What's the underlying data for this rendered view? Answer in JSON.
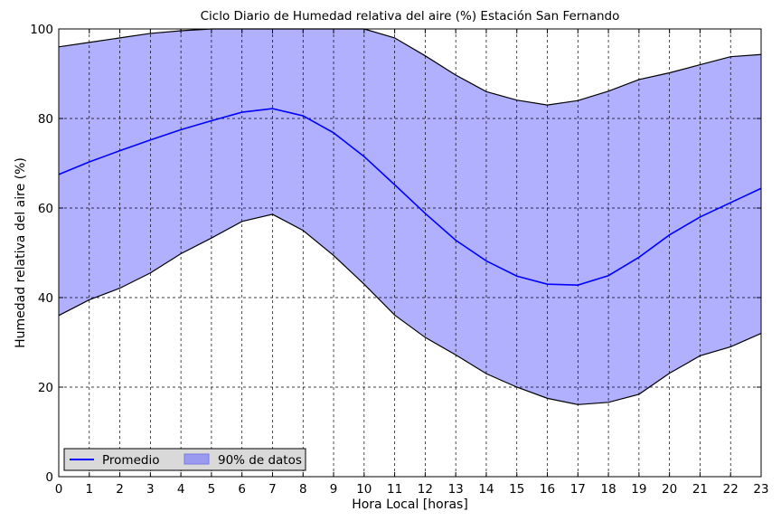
{
  "chart_data": {
    "type": "area",
    "title": "Ciclo Diario de Humedad relativa del aire (%) Estación San Fernando",
    "xlabel": "Hora Local [horas]",
    "ylabel": "Humedad relativa del aire (%)",
    "xlim": [
      0,
      23
    ],
    "ylim": [
      0,
      100
    ],
    "x_ticks": [
      "0",
      "1",
      "2",
      "3",
      "4",
      "5",
      "6",
      "7",
      "8",
      "9",
      "10",
      "11",
      "12",
      "13",
      "14",
      "15",
      "16",
      "17",
      "18",
      "19",
      "20",
      "21",
      "22",
      "23"
    ],
    "y_ticks": [
      "0",
      "20",
      "40",
      "60",
      "80",
      "100"
    ],
    "grid": true,
    "legend_position": "lower-left",
    "x": [
      0,
      1,
      2,
      3,
      4,
      5,
      6,
      7,
      8,
      9,
      10,
      11,
      12,
      13,
      14,
      15,
      16,
      17,
      18,
      19,
      20,
      21,
      22,
      23
    ],
    "series": [
      {
        "name": "Promedio",
        "kind": "line",
        "color": "#0000ff",
        "values": [
          67.5,
          70.3,
          72.8,
          75.2,
          77.5,
          79.5,
          81.4,
          82.2,
          80.6,
          76.8,
          71.5,
          65.2,
          58.8,
          52.8,
          48.2,
          44.8,
          43.0,
          42.8,
          44.9,
          49.0,
          54.0,
          58.0,
          61.2,
          64.4
        ]
      },
      {
        "name": "90% de datos",
        "kind": "band",
        "fill_color": "#b0b0ff",
        "upper": [
          96.0,
          97.0,
          98.0,
          99.0,
          99.6,
          100,
          100,
          100,
          100,
          100,
          100,
          98.0,
          94.0,
          89.7,
          86.0,
          84.1,
          83.0,
          84.0,
          86.1,
          88.7,
          90.2,
          92.0,
          93.8,
          94.3
        ],
        "lower": [
          36.0,
          39.5,
          42.1,
          45.5,
          49.8,
          53.3,
          57.0,
          58.6,
          55.0,
          49.4,
          43.0,
          36.1,
          31.1,
          27.2,
          23.0,
          20.0,
          17.5,
          16.1,
          16.6,
          18.4,
          23.1,
          27.0,
          29.0,
          32.0
        ]
      }
    ]
  }
}
